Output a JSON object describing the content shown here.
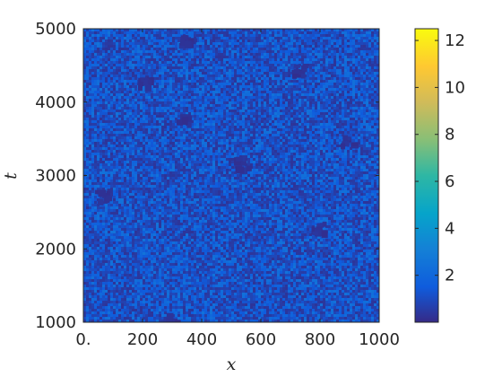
{
  "chart_data": {
    "type": "heatmap",
    "title": "",
    "xlabel": "x",
    "ylabel": "t",
    "xlim": [
      0,
      1000
    ],
    "ylim": [
      1000,
      5000
    ],
    "x_ticks": [
      {
        "value": 0,
        "label": "0."
      },
      {
        "value": 200,
        "label": "200"
      },
      {
        "value": 400,
        "label": "400"
      },
      {
        "value": 600,
        "label": "600"
      },
      {
        "value": 800,
        "label": "800"
      },
      {
        "value": 1000,
        "label": "1000"
      }
    ],
    "y_ticks": [
      {
        "value": 1000,
        "label": "1000"
      },
      {
        "value": 2000,
        "label": "2000"
      },
      {
        "value": 3000,
        "label": "3000"
      },
      {
        "value": 4000,
        "label": "4000"
      },
      {
        "value": 5000,
        "label": "5000"
      }
    ],
    "colorbar": {
      "colormap": "parula",
      "range": [
        0,
        12.5
      ],
      "ticks": [
        {
          "value": 2,
          "label": "2"
        },
        {
          "value": 4,
          "label": "4"
        },
        {
          "value": 6,
          "label": "6"
        },
        {
          "value": 8,
          "label": "8"
        },
        {
          "value": 10,
          "label": "10"
        },
        {
          "value": 12,
          "label": "12"
        }
      ]
    },
    "field": {
      "description_values": "dense noisy field, mostly values between 0.5 and 2.5, with small dark patches near 0",
      "typical_range": [
        0.3,
        2.5
      ],
      "dark_patches": [
        {
          "x": 330,
          "t": 3800
        },
        {
          "x": 720,
          "t": 4450
        },
        {
          "x": 890,
          "t": 3500
        },
        {
          "x": 530,
          "t": 3180
        },
        {
          "x": 790,
          "t": 2300
        },
        {
          "x": 290,
          "t": 1060
        },
        {
          "x": 60,
          "t": 2750
        },
        {
          "x": 340,
          "t": 4850
        },
        {
          "x": 200,
          "t": 4300
        }
      ]
    },
    "grid": false,
    "legend": "none"
  }
}
